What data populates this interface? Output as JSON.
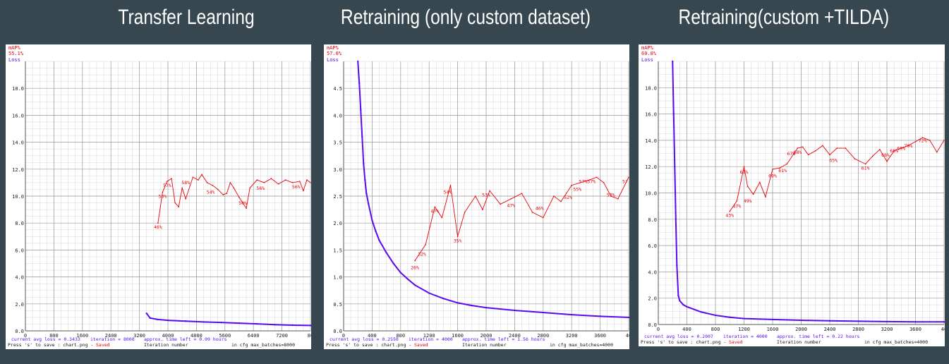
{
  "colors": {
    "background": "#37474f",
    "loss": "#5a0af0",
    "map": "#e8000a",
    "grid": "#d4d4d4",
    "gridMajor": "#9a9a9a"
  },
  "chart_data": [
    {
      "type": "line",
      "title": "Transfer Learning",
      "map_label": "mAP%",
      "map_current": "55.1%",
      "loss_label": "Loss",
      "xlim": [
        0,
        8000
      ],
      "ylim": [
        0,
        20
      ],
      "y_ticks": [
        "0.0",
        "2.0",
        "4.0",
        "6.0",
        "8.0",
        "10.0",
        "12.0",
        "14.0",
        "16.0",
        "18.0"
      ],
      "y_tick_values": [
        0,
        2,
        4,
        6,
        8,
        10,
        12,
        14,
        16,
        18
      ],
      "x_ticks": [
        "0",
        "800",
        "1600",
        "2400",
        "3200",
        "4000",
        "4800",
        "5600",
        "6400",
        "7200",
        "80"
      ],
      "x_tick_values": [
        0,
        800,
        1600,
        2400,
        3200,
        4000,
        4800,
        5600,
        6400,
        7200,
        8000
      ],
      "status": {
        "loss_text": "current avg loss = 0.3433",
        "iteration_text": "iteration = 8000",
        "time_text": "approx. time left = 0.09 hours",
        "save_text": "Press 's' to save : chart.png -",
        "saved_text": "Saved",
        "xlabel": "Iteration number",
        "batches_text": "in cfg max_batches=8000"
      },
      "loss_series": {
        "x": [
          3400,
          3500,
          3700,
          4000,
          4500,
          5000,
          5500,
          6000,
          6500,
          7000,
          7500,
          8000
        ],
        "y": [
          1.3,
          0.95,
          0.85,
          0.78,
          0.72,
          0.66,
          0.62,
          0.57,
          0.52,
          0.46,
          0.42,
          0.4
        ]
      },
      "map_series": {
        "x": [
          3720,
          3850,
          3980,
          4100,
          4200,
          4300,
          4400,
          4500,
          4700,
          4850,
          4950,
          5100,
          5250,
          5400,
          5550,
          5650,
          5750,
          5850,
          6000,
          6100,
          6200,
          6300,
          6500,
          6700,
          6900,
          7100,
          7300,
          7500,
          7700,
          7800,
          7900,
          8000
        ],
        "y": [
          8.0,
          10.3,
          11.1,
          11.3,
          9.5,
          9.2,
          10.6,
          9.8,
          11.4,
          11.2,
          11.6,
          11.0,
          10.8,
          10.5,
          10.1,
          10.2,
          11.0,
          10.6,
          9.9,
          9.5,
          9.1,
          10.6,
          11.2,
          11.0,
          11.3,
          10.9,
          11.2,
          11.0,
          11.1,
          10.4,
          11.2,
          11.0
        ]
      },
      "map_labels": [
        {
          "x": 3720,
          "y": 8.0,
          "t": "46%"
        },
        {
          "x": 3850,
          "y": 10.3,
          "t": "53%"
        },
        {
          "x": 3980,
          "y": 11.1,
          "t": "57%"
        },
        {
          "x": 4500,
          "y": 11.3,
          "t": "58%"
        },
        {
          "x": 5200,
          "y": 10.6,
          "t": "54%"
        },
        {
          "x": 6100,
          "y": 9.8,
          "t": "50%"
        },
        {
          "x": 6600,
          "y": 10.9,
          "t": "56%"
        },
        {
          "x": 7600,
          "y": 11.0,
          "t": "56%"
        }
      ]
    },
    {
      "type": "line",
      "title": "Retraining (only custom dataset)",
      "map_label": "mAP%",
      "map_current": "57.0%",
      "loss_label": "Loss",
      "xlim": [
        0,
        4000
      ],
      "ylim": [
        0,
        5
      ],
      "y_ticks": [
        "0.0",
        "0.5",
        "1.0",
        "1.5",
        "2.0",
        "2.5",
        "3.0",
        "3.5",
        "4.0",
        "4.5"
      ],
      "y_tick_values": [
        0,
        0.5,
        1,
        1.5,
        2,
        2.5,
        3,
        3.5,
        4,
        4.5
      ],
      "x_ticks": [
        "0",
        "400",
        "800",
        "1200",
        "1600",
        "2000",
        "2400",
        "2800",
        "3200",
        "3600",
        "40"
      ],
      "x_tick_values": [
        0,
        400,
        800,
        1200,
        1600,
        2000,
        2400,
        2800,
        3200,
        3600,
        4000
      ],
      "status": {
        "loss_text": "current avg loss = 0.2550",
        "iteration_text": "iteration = 4000",
        "time_text": "approx. time left = 1.56 hours",
        "save_text": "Press 's' to save : chart.png -",
        "saved_text": "Saved",
        "xlabel": "Iteration number",
        "batches_text": "in cfg max_batches=4000"
      },
      "loss_series": {
        "x": [
          200,
          220,
          240,
          260,
          280,
          300,
          320,
          350,
          400,
          450,
          500,
          600,
          700,
          800,
          900,
          1000,
          1200,
          1400,
          1600,
          1800,
          2000,
          2400,
          2800,
          3200,
          3600,
          4000
        ],
        "y": [
          5.0,
          4.6,
          4.1,
          3.6,
          3.1,
          2.8,
          2.55,
          2.35,
          2.05,
          1.85,
          1.68,
          1.45,
          1.25,
          1.08,
          0.96,
          0.85,
          0.7,
          0.6,
          0.52,
          0.47,
          0.43,
          0.38,
          0.34,
          0.3,
          0.27,
          0.25
        ]
      },
      "map_series": {
        "x": [
          1000,
          1150,
          1280,
          1380,
          1500,
          1600,
          1700,
          1850,
          1950,
          2050,
          2200,
          2350,
          2500,
          2650,
          2800,
          2950,
          3050,
          3200,
          3320,
          3450,
          3550,
          3650,
          3750,
          3850,
          4000
        ],
        "y": [
          1.3,
          1.6,
          2.3,
          2.1,
          2.7,
          1.75,
          2.2,
          2.5,
          2.25,
          2.6,
          2.35,
          2.45,
          2.55,
          2.2,
          2.1,
          2.5,
          2.4,
          2.7,
          2.75,
          2.8,
          2.85,
          2.75,
          2.5,
          2.45,
          2.85
        ]
      },
      "map_labels": [
        {
          "x": 1000,
          "y": 1.25,
          "t": "26%"
        },
        {
          "x": 1100,
          "y": 1.5,
          "t": "32%"
        },
        {
          "x": 1280,
          "y": 2.3,
          "t": "47%"
        },
        {
          "x": 1460,
          "y": 2.65,
          "t": "54%"
        },
        {
          "x": 1600,
          "y": 1.75,
          "t": "35%"
        },
        {
          "x": 2000,
          "y": 2.6,
          "t": "53%"
        },
        {
          "x": 2350,
          "y": 2.4,
          "t": "47%"
        },
        {
          "x": 2750,
          "y": 2.35,
          "t": "46%"
        },
        {
          "x": 3150,
          "y": 2.55,
          "t": "52%"
        },
        {
          "x": 3280,
          "y": 2.7,
          "t": "55%"
        },
        {
          "x": 3420,
          "y": 2.85,
          "t": "57%57%"
        },
        {
          "x": 3750,
          "y": 2.6,
          "t": "53%"
        },
        {
          "x": 3950,
          "y": 2.85,
          "t": "57"
        }
      ]
    },
    {
      "type": "line",
      "title": "Retraining(custom +TILDA)",
      "map_label": "mAP%",
      "map_current": "69.8%",
      "loss_label": "Loss",
      "xlim": [
        0,
        4000
      ],
      "ylim": [
        0,
        20
      ],
      "y_ticks": [
        "0.0",
        "2.0",
        "4.0",
        "6.0",
        "8.0",
        "10.0",
        "12.0",
        "14.0",
        "16.0",
        "18.0"
      ],
      "y_tick_values": [
        0,
        2,
        4,
        6,
        8,
        10,
        12,
        14,
        16,
        18
      ],
      "x_ticks": [
        "0",
        "400",
        "800",
        "1200",
        "1600",
        "2000",
        "2400",
        "2800",
        "3200",
        "3600",
        "40"
      ],
      "x_tick_values": [
        0,
        400,
        800,
        1200,
        1600,
        2000,
        2400,
        2800,
        3200,
        3600,
        4000
      ],
      "status": {
        "loss_text": "current avg loss = 0.2007",
        "iteration_text": "iteration = 4000",
        "time_text": "approx. time left = 0.22 hours",
        "save_text": "Press 's' to save : chart.png -",
        "saved_text": "Saved",
        "xlabel": "Iteration number",
        "batches_text": "in cfg max_batches=4000"
      },
      "loss_series": {
        "x": [
          200,
          215,
          230,
          245,
          260,
          280,
          300,
          350,
          400,
          500,
          600,
          800,
          1000,
          1200,
          1600,
          2000,
          2400,
          2800,
          3200,
          3600,
          4000
        ],
        "y": [
          20,
          16,
          12,
          8,
          4.5,
          2.2,
          1.8,
          1.5,
          1.35,
          1.15,
          0.95,
          0.7,
          0.55,
          0.45,
          0.38,
          0.32,
          0.28,
          0.25,
          0.22,
          0.2,
          0.2
        ]
      },
      "map_series": {
        "x": [
          1000,
          1100,
          1200,
          1250,
          1330,
          1420,
          1500,
          1600,
          1700,
          1800,
          1900,
          1950,
          2020,
          2100,
          2200,
          2300,
          2400,
          2500,
          2620,
          2750,
          2900,
          3000,
          3100,
          3200,
          3300,
          3400,
          3500,
          3600,
          3700,
          3800,
          3900,
          4000
        ],
        "y": [
          8.6,
          9.4,
          12.0,
          10.5,
          9.9,
          10.8,
          9.7,
          11.8,
          11.9,
          12.2,
          13.0,
          13.4,
          13.5,
          12.9,
          13.2,
          13.6,
          12.9,
          13.4,
          13.4,
          12.6,
          12.2,
          12.8,
          13.3,
          12.4,
          13.2,
          13.4,
          13.6,
          13.9,
          14.2,
          14.0,
          13.1,
          14.0
        ]
      },
      "map_labels": [
        {
          "x": 1000,
          "y": 8.6,
          "t": "43%"
        },
        {
          "x": 1100,
          "y": 9.3,
          "t": "47%"
        },
        {
          "x": 1200,
          "y": 11.9,
          "t": "61%"
        },
        {
          "x": 1250,
          "y": 9.7,
          "t": "49%"
        },
        {
          "x": 1600,
          "y": 11.6,
          "t": "60%"
        },
        {
          "x": 1740,
          "y": 12.0,
          "t": "61%"
        },
        {
          "x": 1860,
          "y": 13.3,
          "t": "67%"
        },
        {
          "x": 1950,
          "y": 13.4,
          "t": "68%"
        },
        {
          "x": 2450,
          "y": 12.8,
          "t": "65%"
        },
        {
          "x": 2900,
          "y": 12.2,
          "t": "61%"
        },
        {
          "x": 3180,
          "y": 13.2,
          "t": "66%"
        },
        {
          "x": 3300,
          "y": 13.5,
          "t": "68%"
        },
        {
          "x": 3400,
          "y": 13.7,
          "t": "69%"
        },
        {
          "x": 3500,
          "y": 13.9,
          "t": "70%"
        },
        {
          "x": 3700,
          "y": 14.3,
          "t": "72%"
        }
      ]
    }
  ]
}
